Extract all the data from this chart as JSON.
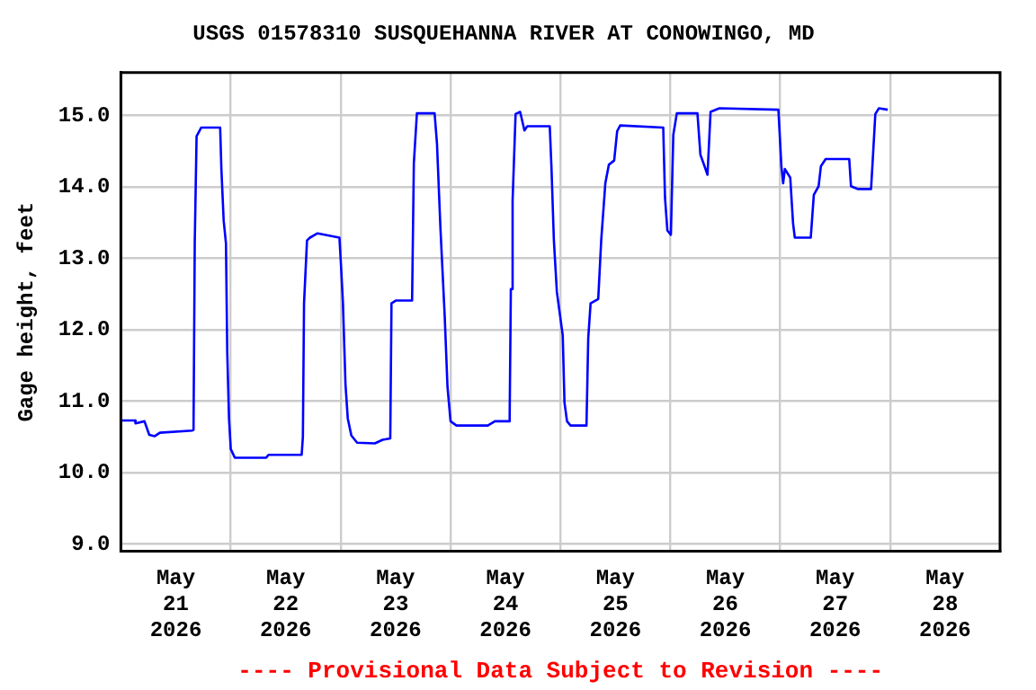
{
  "chart_data": {
    "type": "line",
    "title": "USGS 01578310 SUSQUEHANNA RIVER AT CONOWINGO, MD",
    "ylabel": "Gage height, feet",
    "annotations": [
      "---- Provisional Data Subject to Revision ----"
    ],
    "x": [
      "2026-05-21T00:00",
      "2026-05-21T03:06",
      "2026-05-21T03:12",
      "2026-05-21T05:09",
      "2026-05-21T06:12",
      "2026-05-21T07:21",
      "2026-05-21T08:31",
      "2026-05-21T15:36",
      "2026-05-21T15:52",
      "2026-05-21T16:08",
      "2026-05-21T16:32",
      "2026-05-21T17:32",
      "2026-05-21T21:41",
      "2026-05-21T21:57",
      "2026-05-21T22:27",
      "2026-05-21T22:57",
      "2026-05-21T23:14",
      "2026-05-21T23:37",
      "2026-05-22T00:00",
      "2026-05-22T00:53",
      "2026-05-22T07:44",
      "2026-05-22T08:15",
      "2026-05-22T15:29",
      "2026-05-22T15:45",
      "2026-05-22T16:00",
      "2026-05-22T16:39",
      "2026-05-22T17:18",
      "2026-05-22T18:58",
      "2026-05-22T23:44",
      "2026-05-23T00:07",
      "2026-05-23T00:30",
      "2026-05-23T01:03",
      "2026-05-23T01:33",
      "2026-05-23T02:20",
      "2026-05-23T03:36",
      "2026-05-23T07:28",
      "2026-05-23T09:10",
      "2026-05-23T10:50",
      "2026-05-23T11:06",
      "2026-05-23T12:06",
      "2026-05-23T15:36",
      "2026-05-23T15:59",
      "2026-05-23T16:39",
      "2026-05-23T20:31",
      "2026-05-23T21:02",
      "2026-05-23T21:48",
      "2026-05-23T22:43",
      "2026-05-23T23:20",
      "2026-05-24T00:00",
      "2026-05-24T01:17",
      "2026-05-24T08:08",
      "2026-05-24T09:41",
      "2026-05-24T12:54",
      "2026-05-24T13:10",
      "2026-05-24T13:33",
      "2026-05-24T14:12",
      "2026-05-24T15:12",
      "2026-05-24T16:08",
      "2026-05-24T16:45",
      "2026-05-24T21:40",
      "2026-05-24T22:03",
      "2026-05-24T22:34",
      "2026-05-24T23:13",
      "2026-05-25T00:30",
      "2026-05-25T00:53",
      "2026-05-25T01:26",
      "2026-05-25T02:12",
      "2026-05-25T05:41",
      "2026-05-25T06:04",
      "2026-05-25T06:35",
      "2026-05-25T08:15",
      "2026-05-25T08:54",
      "2026-05-25T09:48",
      "2026-05-25T10:34",
      "2026-05-25T11:44",
      "2026-05-25T12:23",
      "2026-05-25T13:03",
      "2026-05-25T22:27",
      "2026-05-25T22:50",
      "2026-05-25T23:21",
      "2026-05-26T00:07",
      "2026-05-26T00:39",
      "2026-05-26T01:25",
      "2026-05-26T05:55",
      "2026-05-26T06:34",
      "2026-05-26T07:28",
      "2026-05-26T08:07",
      "2026-05-26T08:47",
      "2026-05-26T10:43",
      "2026-05-26T23:36",
      "2026-05-27T00:15",
      "2026-05-27T00:38",
      "2026-05-27T01:01",
      "2026-05-27T02:11",
      "2026-05-27T02:48",
      "2026-05-27T03:11",
      "2026-05-27T06:40",
      "2026-05-27T07:20",
      "2026-05-27T08:23",
      "2026-05-27T08:53",
      "2026-05-27T09:55",
      "2026-05-27T15:04",
      "2026-05-27T15:27",
      "2026-05-27T17:00",
      "2026-05-27T19:50",
      "2026-05-27T20:14",
      "2026-05-27T20:46",
      "2026-05-27T21:33",
      "2026-05-27T23:29"
    ],
    "series": [
      {
        "color": "#0000ff",
        "values": [
          10.73,
          10.73,
          10.69,
          10.72,
          10.53,
          10.51,
          10.56,
          10.59,
          10.6,
          13.21,
          14.71,
          14.83,
          14.83,
          14.25,
          13.53,
          13.21,
          11.68,
          10.76,
          10.33,
          10.21,
          10.21,
          10.25,
          10.25,
          10.5,
          12.37,
          13.25,
          13.29,
          13.35,
          13.29,
          12.85,
          12.37,
          11.24,
          10.76,
          10.52,
          10.42,
          10.41,
          10.46,
          10.48,
          12.37,
          12.41,
          12.41,
          14.33,
          15.03,
          15.03,
          14.61,
          13.41,
          12.2,
          11.2,
          10.72,
          10.66,
          10.66,
          10.72,
          10.72,
          12.57,
          13.81,
          15.02,
          15.05,
          14.79,
          14.85,
          14.85,
          14.25,
          13.25,
          12.53,
          11.92,
          10.98,
          10.72,
          10.66,
          10.66,
          11.88,
          12.37,
          12.43,
          13.25,
          14.05,
          14.31,
          14.37,
          14.78,
          14.86,
          14.83,
          13.85,
          13.39,
          13.33,
          14.73,
          15.03,
          15.03,
          14.45,
          14.29,
          14.17,
          15.05,
          15.1,
          15.08,
          14.29,
          14.05,
          14.25,
          14.13,
          13.49,
          13.29,
          13.29,
          13.89,
          14.01,
          14.29,
          14.39,
          14.39,
          14.01,
          13.97,
          13.97,
          14.41,
          15.02,
          15.1,
          15.08
        ]
      }
    ],
    "xlim": [
      "2026-05-21T00:00",
      "2026-05-29T00:00"
    ],
    "xticks": [
      {
        "value": "2026-05-21T00:00",
        "label": null
      },
      {
        "value": "2026-05-21T12:00",
        "label": "May 21 2026"
      },
      {
        "value": "2026-05-22T00:00",
        "label": null
      },
      {
        "value": "2026-05-22T12:00",
        "label": "May 22 2026"
      },
      {
        "value": "2026-05-23T00:00",
        "label": null
      },
      {
        "value": "2026-05-23T12:00",
        "label": "May 23 2026"
      },
      {
        "value": "2026-05-24T00:00",
        "label": null
      },
      {
        "value": "2026-05-24T12:00",
        "label": "May 24 2026"
      },
      {
        "value": "2026-05-25T00:00",
        "label": null
      },
      {
        "value": "2026-05-25T12:00",
        "label": "May 25 2026"
      },
      {
        "value": "2026-05-26T00:00",
        "label": null
      },
      {
        "value": "2026-05-26T12:00",
        "label": "May 26 2026"
      },
      {
        "value": "2026-05-27T00:00",
        "label": null
      },
      {
        "value": "2026-05-27T12:00",
        "label": "May 27 2026"
      },
      {
        "value": "2026-05-28T00:00",
        "label": null
      },
      {
        "value": "2026-05-28T12:00",
        "label": "May 28 2026"
      },
      {
        "value": "2026-05-29T00:00",
        "label": null
      }
    ],
    "ylim": [
      8.9,
      15.6
    ],
    "yticks": [
      {
        "value": 9,
        "label": "9.0"
      },
      {
        "value": 10,
        "label": "10.0"
      },
      {
        "value": 11,
        "label": "11.0"
      },
      {
        "value": 12,
        "label": "12.0"
      },
      {
        "value": 13,
        "label": "13.0"
      },
      {
        "value": 14,
        "label": "14.0"
      },
      {
        "value": 15,
        "label": "15.0"
      }
    ],
    "grid": true
  }
}
